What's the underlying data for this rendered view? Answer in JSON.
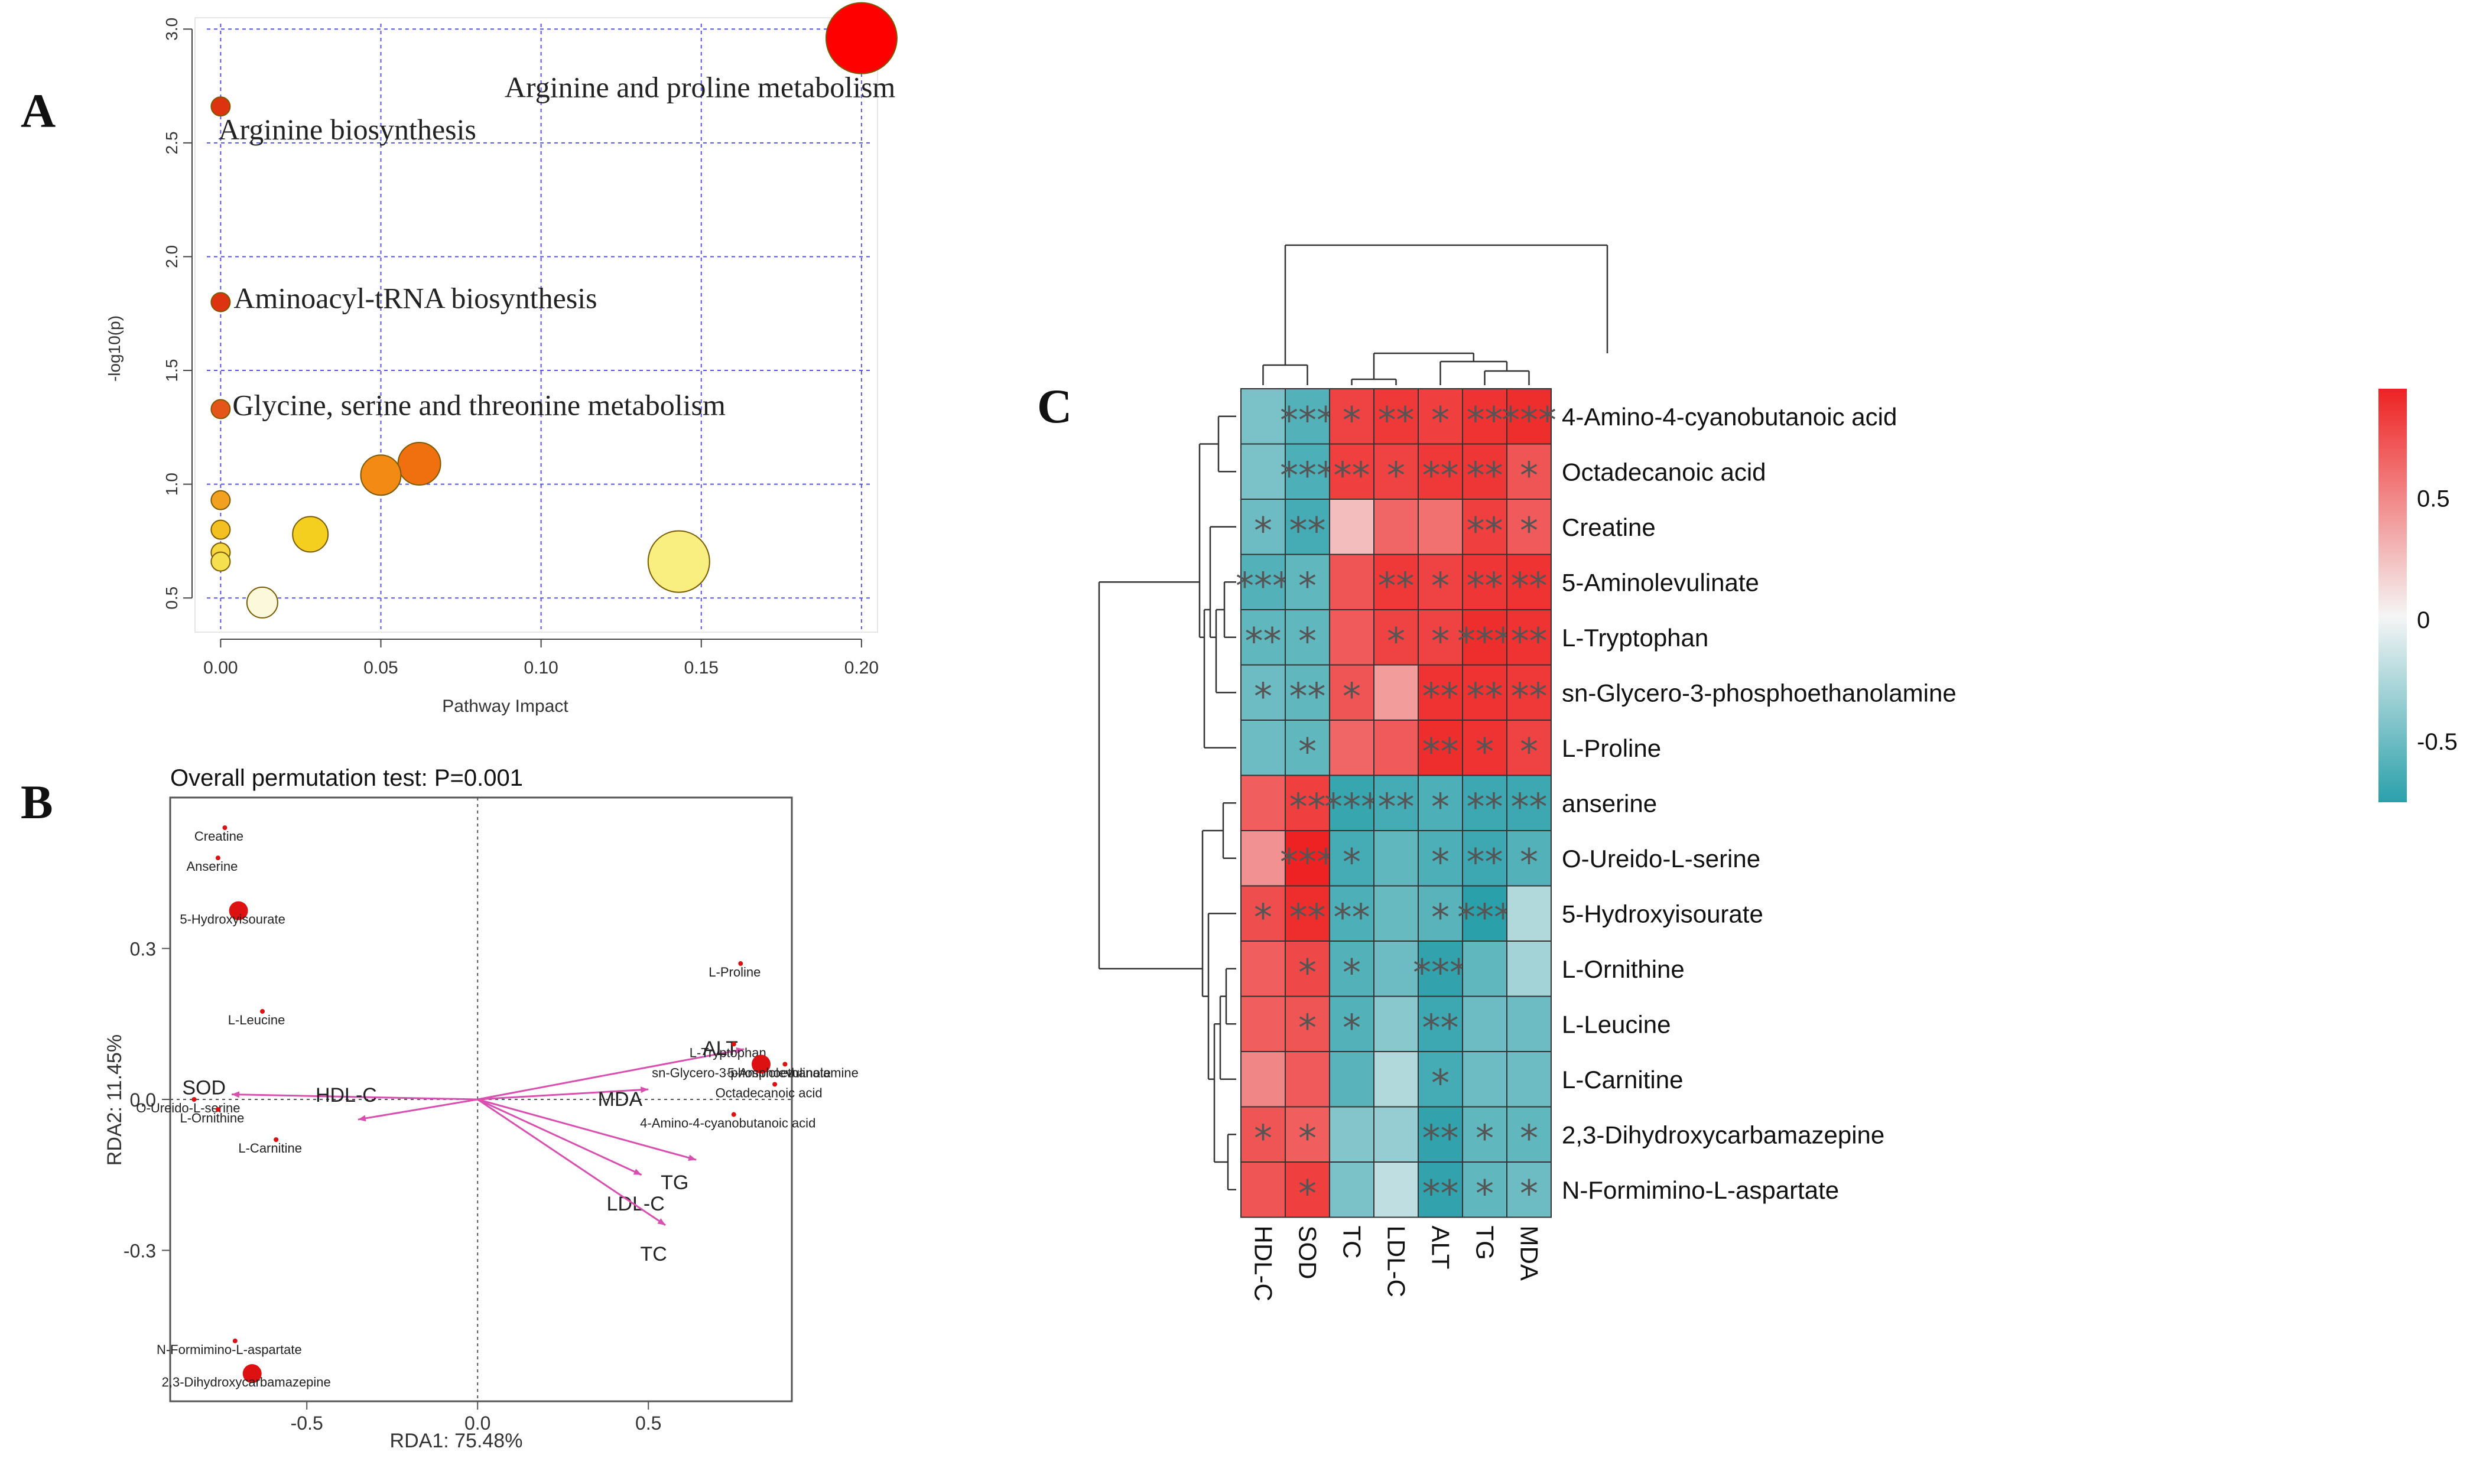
{
  "panel_labels": {
    "a": "A",
    "b": "B",
    "c": "C"
  },
  "chart_data": [
    {
      "type": "scatter",
      "id": "panel-A",
      "xlabel": "Pathway Impact",
      "ylabel": "-log10(p)",
      "xlim": [
        -0.008,
        0.205
      ],
      "ylim": [
        0.35,
        3.05
      ],
      "x_ticks": [
        "0.00",
        "0.05",
        "0.10",
        "0.15",
        "0.20"
      ],
      "y_ticks": [
        "0.5",
        "1.0",
        "1.5",
        "2.0",
        "2.5",
        "3.0"
      ],
      "grid": true,
      "points": [
        {
          "x": 0.2,
          "y": 2.96,
          "size": 60,
          "color": "#ff0000",
          "label": "Arginine and proline metabolism"
        },
        {
          "x": 0.0,
          "y": 2.66,
          "size": 16,
          "color": "#dd3311",
          "label": "Arginine biosynthesis"
        },
        {
          "x": 0.0,
          "y": 1.8,
          "size": 16,
          "color": "#dd3311",
          "label": "Aminoacyl-tRNA biosynthesis"
        },
        {
          "x": 0.0,
          "y": 1.33,
          "size": 16,
          "color": "#e5551a",
          "label": "Glycine, serine and threonine metabolism"
        },
        {
          "x": 0.062,
          "y": 1.09,
          "size": 36,
          "color": "#f07010",
          "label": ""
        },
        {
          "x": 0.05,
          "y": 1.04,
          "size": 34,
          "color": "#f28a14",
          "label": ""
        },
        {
          "x": 0.0,
          "y": 0.93,
          "size": 16,
          "color": "#f2a020",
          "label": ""
        },
        {
          "x": 0.0,
          "y": 0.8,
          "size": 16,
          "color": "#f2c020",
          "label": ""
        },
        {
          "x": 0.0,
          "y": 0.7,
          "size": 16,
          "color": "#f5d840",
          "label": ""
        },
        {
          "x": 0.0,
          "y": 0.66,
          "size": 16,
          "color": "#f5e050",
          "label": ""
        },
        {
          "x": 0.028,
          "y": 0.78,
          "size": 30,
          "color": "#f5cf20",
          "label": ""
        },
        {
          "x": 0.143,
          "y": 0.66,
          "size": 52,
          "color": "#f8ef80",
          "label": ""
        },
        {
          "x": 0.013,
          "y": 0.48,
          "size": 26,
          "color": "#fbf8dc",
          "label": ""
        }
      ]
    },
    {
      "type": "scatter",
      "id": "panel-B",
      "title": "Overall permutation test: P=0.001",
      "xlabel": "RDA1: 75.48%",
      "ylabel": "RDA2: 11.45%",
      "xlim": [
        -0.9,
        0.92
      ],
      "ylim": [
        -0.6,
        0.6
      ],
      "x_ticks": [
        {
          "v": -0.5,
          "label": "-0.5"
        },
        {
          "v": 0.0,
          "label": "0.0"
        },
        {
          "v": 0.5,
          "label": "0.5"
        }
      ],
      "y_ticks": [
        {
          "v": 0.3,
          "label": "0.3"
        },
        {
          "v": 0.0,
          "label": "0.0"
        },
        {
          "v": -0.3,
          "label": "-0.3"
        }
      ],
      "metabolites": [
        {
          "label": "Creatine",
          "x": -0.74,
          "y": 0.54,
          "big": false
        },
        {
          "label": "Anserine",
          "x": -0.76,
          "y": 0.48,
          "big": false
        },
        {
          "label": "5-Hydroxyisourate",
          "x": -0.7,
          "y": 0.375,
          "big": true
        },
        {
          "label": "L-Leucine",
          "x": -0.63,
          "y": 0.175,
          "big": false
        },
        {
          "label": "O-Ureido-L-serine",
          "x": -0.83,
          "y": 0.0,
          "big": false
        },
        {
          "label": "L-Ornithine",
          "x": -0.76,
          "y": -0.02,
          "big": false
        },
        {
          "label": "L-Carnitine",
          "x": -0.59,
          "y": -0.08,
          "big": false
        },
        {
          "label": "L-Proline",
          "x": 0.77,
          "y": 0.27,
          "big": false
        },
        {
          "label": "L-Tryptophan",
          "x": 0.75,
          "y": 0.11,
          "big": false
        },
        {
          "label": "5-Aminolevulinate",
          "x": 0.9,
          "y": 0.07,
          "big": false
        },
        {
          "label": "sn-Glycero-3-phosphoethanolamine",
          "x": 0.83,
          "y": 0.07,
          "big": true
        },
        {
          "label": "Octadecanoic acid",
          "x": 0.87,
          "y": 0.03,
          "big": false
        },
        {
          "label": "4-Amino-4-cyanobutanoic acid",
          "x": 0.75,
          "y": -0.03,
          "big": false
        },
        {
          "label": "N-Formimino-L-aspartate",
          "x": -0.71,
          "y": -0.48,
          "big": false
        },
        {
          "label": "2,3-Dihydroxycarbamazepine",
          "x": -0.66,
          "y": -0.545,
          "big": true
        }
      ],
      "vectors": [
        {
          "label": "SOD",
          "x": -0.72,
          "y": 0.01
        },
        {
          "label": "HDL-C",
          "x": -0.35,
          "y": -0.04
        },
        {
          "label": "MDA",
          "x": 0.5,
          "y": 0.02
        },
        {
          "label": "ALT",
          "x": 0.78,
          "y": 0.1
        },
        {
          "label": "TG",
          "x": 0.64,
          "y": -0.12
        },
        {
          "label": "LDL-C",
          "x": 0.48,
          "y": -0.15
        },
        {
          "label": "TC",
          "x": 0.55,
          "y": -0.25
        }
      ]
    },
    {
      "type": "heatmap",
      "id": "panel-C",
      "columns": [
        "HDL-C",
        "SOD",
        "TC",
        "LDL-C",
        "ALT",
        "TG",
        "MDA"
      ],
      "rows": [
        "4-Amino-4-cyanobutanoic acid",
        "Octadecanoic acid",
        "Creatine",
        "5-Aminolevulinate",
        "L-Tryptophan",
        "sn-Glycero-3-phosphoethanolamine",
        "L-Proline",
        "anserine",
        "O-Ureido-L-serine",
        "5-Hydroxyisourate",
        "L-Ornithine",
        "L-Leucine",
        "L-Carnitine",
        "2,3-Dihydroxycarbamazepine",
        "N-Formimino-L-aspartate"
      ],
      "values": [
        [
          -0.45,
          -0.6,
          0.8,
          0.85,
          0.82,
          0.88,
          0.9
        ],
        [
          -0.45,
          -0.62,
          0.82,
          0.8,
          0.85,
          0.86,
          0.72
        ],
        [
          -0.5,
          -0.65,
          0.25,
          0.65,
          0.6,
          0.82,
          0.7
        ],
        [
          -0.6,
          -0.55,
          0.72,
          0.85,
          0.8,
          0.86,
          0.88
        ],
        [
          -0.55,
          -0.55,
          0.7,
          0.8,
          0.8,
          0.9,
          0.88
        ],
        [
          -0.5,
          -0.55,
          0.72,
          0.4,
          0.88,
          0.88,
          0.85
        ],
        [
          -0.5,
          -0.55,
          0.65,
          0.7,
          0.9,
          0.88,
          0.8
        ],
        [
          0.68,
          0.82,
          -0.7,
          -0.65,
          -0.62,
          -0.68,
          -0.68
        ],
        [
          0.45,
          0.95,
          -0.65,
          -0.55,
          -0.62,
          -0.68,
          -0.6
        ],
        [
          0.75,
          0.9,
          -0.62,
          -0.52,
          -0.58,
          -0.82,
          -0.25
        ],
        [
          0.68,
          0.78,
          -0.6,
          -0.5,
          -0.72,
          -0.55,
          -0.3
        ],
        [
          0.68,
          0.72,
          -0.6,
          -0.4,
          -0.68,
          -0.5,
          -0.5
        ],
        [
          0.5,
          0.7,
          -0.58,
          -0.25,
          -0.65,
          -0.5,
          -0.5
        ],
        [
          0.72,
          0.68,
          -0.42,
          -0.35,
          -0.72,
          -0.55,
          -0.55
        ],
        [
          0.72,
          0.82,
          -0.45,
          -0.2,
          -0.72,
          -0.55,
          -0.5
        ]
      ],
      "stars": [
        [
          "",
          "***",
          "*",
          "**",
          "*",
          "**",
          "***"
        ],
        [
          "",
          "***",
          "**",
          "*",
          "**",
          "**",
          "*"
        ],
        [
          "*",
          "**",
          "",
          "",
          "",
          "**",
          "*"
        ],
        [
          "***",
          "*",
          "",
          "**",
          "*",
          "**",
          "**"
        ],
        [
          "**",
          "*",
          "",
          "*",
          "*",
          "***",
          "**"
        ],
        [
          "*",
          "**",
          "*",
          "",
          "**",
          "**",
          "**"
        ],
        [
          "",
          "*",
          "",
          "",
          "**",
          "*",
          "*"
        ],
        [
          "",
          "**",
          "***",
          "**",
          "*",
          "**",
          "**"
        ],
        [
          "",
          "***",
          "*",
          "",
          "*",
          "**",
          "*"
        ],
        [
          "*",
          "**",
          "**",
          "",
          "*",
          "***",
          ""
        ],
        [
          "",
          "*",
          "*",
          "",
          "***",
          "",
          ""
        ],
        [
          "",
          "*",
          "*",
          "",
          "**",
          "",
          ""
        ],
        [
          "",
          "",
          "",
          "",
          "*",
          "",
          ""
        ],
        [
          "*",
          "*",
          "",
          "",
          "**",
          "*",
          "*"
        ],
        [
          "",
          "*",
          "",
          "",
          "**",
          "*",
          "*"
        ]
      ],
      "colorbar": {
        "min": -0.75,
        "max": 0.95,
        "ticks": [
          "0.5",
          "0",
          "-0.5"
        ],
        "tick_values": [
          0.5,
          0,
          -0.5
        ],
        "low_color": "#2aa0aa",
        "mid_color": "#f5f5f5",
        "high_color": "#ee2222"
      }
    }
  ]
}
